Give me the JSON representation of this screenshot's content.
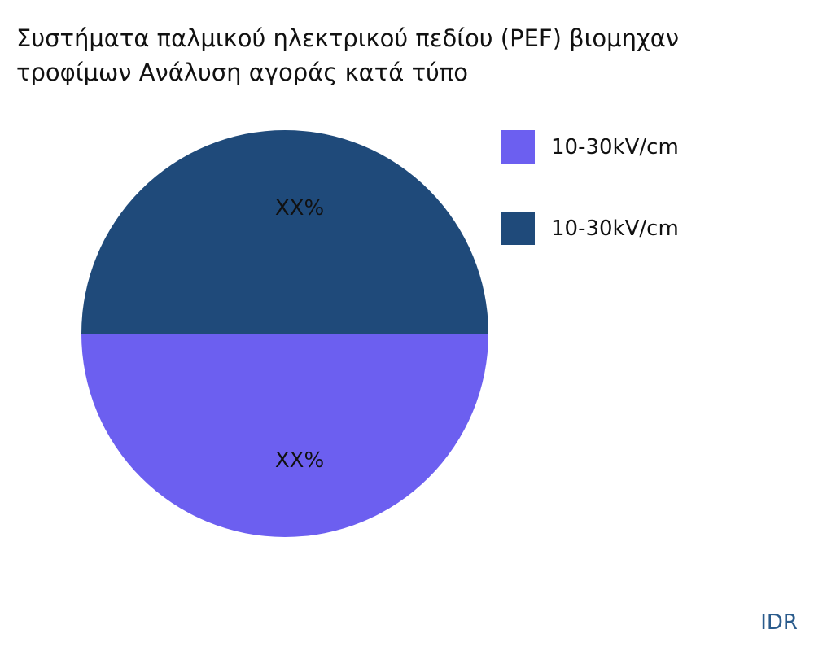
{
  "chart_data": {
    "type": "pie",
    "title_lines": [
      "Συστήματα παλμικού ηλεκτρικού πεδίου (PEF) βιομηχαν",
      "τροφίμων Ανάλυση αγοράς κατά τύπο"
    ],
    "slices": [
      {
        "name": "10-30kV/cm",
        "value": 50,
        "label": "XX%",
        "color": "#6c5ff0"
      },
      {
        "name": "10-30kV/cm",
        "value": 50,
        "label": "XX%",
        "color": "#1f4a7a"
      }
    ],
    "legend_position": "right"
  },
  "brand": "IDR"
}
